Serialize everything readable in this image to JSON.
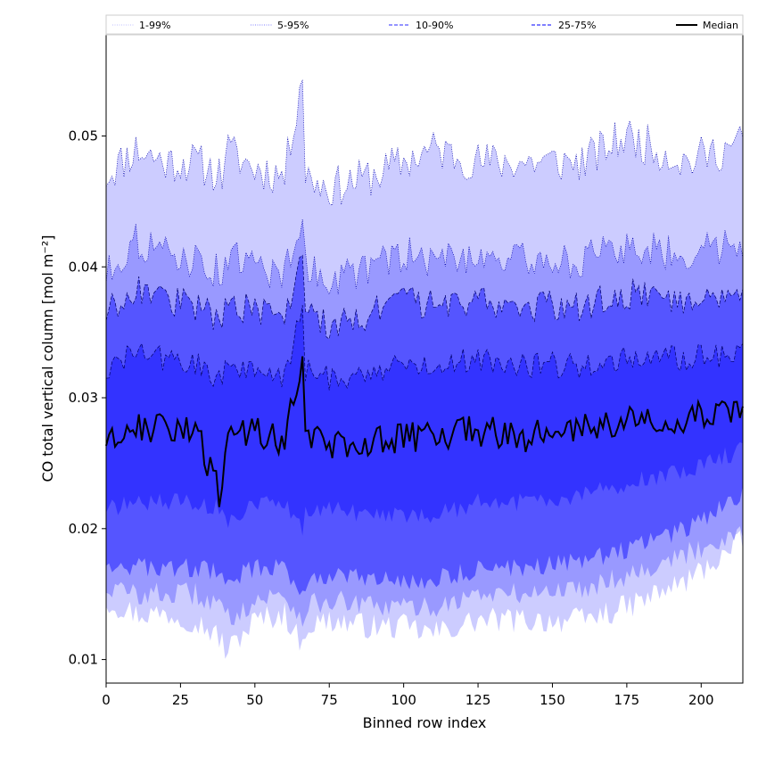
{
  "chart_data": {
    "type": "area",
    "xlabel": "Binned row index",
    "ylabel": "CO total vertical column [mol m⁻²]",
    "xlim": [
      0,
      214
    ],
    "ylim": [
      0.0082,
      0.0578
    ],
    "x_ticks": [
      "0",
      "25",
      "50",
      "75",
      "100",
      "125",
      "150",
      "175",
      "200"
    ],
    "y_ticks": [
      "0.01",
      "0.02",
      "0.03",
      "0.04",
      "0.05"
    ],
    "legend_position": "top",
    "grid": false,
    "series": [
      {
        "name": "1-99%",
        "color": "#ccccff",
        "style": "dotted",
        "knots_x": [
          0,
          10,
          20,
          30,
          39,
          40,
          50,
          60,
          66,
          67,
          75,
          90,
          100,
          110,
          125,
          140,
          160,
          175,
          195,
          214
        ],
        "lower": [
          0.0145,
          0.0135,
          0.0135,
          0.013,
          0.0115,
          0.0105,
          0.013,
          0.0135,
          0.011,
          0.0125,
          0.013,
          0.0125,
          0.0125,
          0.012,
          0.013,
          0.013,
          0.013,
          0.014,
          0.016,
          0.019
        ],
        "upper": [
          0.047,
          0.049,
          0.048,
          0.048,
          0.047,
          0.049,
          0.0475,
          0.047,
          0.055,
          0.047,
          0.046,
          0.047,
          0.048,
          0.049,
          0.048,
          0.048,
          0.048,
          0.05,
          0.048,
          0.0495
        ]
      },
      {
        "name": "5-95%",
        "color": "#9999ff",
        "style": "dotted",
        "knots_x": [
          0,
          10,
          20,
          30,
          39,
          40,
          50,
          60,
          66,
          67,
          75,
          90,
          100,
          110,
          125,
          140,
          160,
          175,
          195,
          214
        ],
        "lower": [
          0.0155,
          0.015,
          0.015,
          0.015,
          0.014,
          0.013,
          0.0145,
          0.015,
          0.013,
          0.014,
          0.0145,
          0.014,
          0.014,
          0.014,
          0.015,
          0.015,
          0.0155,
          0.0165,
          0.018,
          0.02
        ],
        "upper": [
          0.0395,
          0.042,
          0.041,
          0.0405,
          0.0395,
          0.041,
          0.04,
          0.0395,
          0.044,
          0.04,
          0.039,
          0.04,
          0.041,
          0.0405,
          0.041,
          0.0405,
          0.0405,
          0.0415,
          0.041,
          0.042
        ]
      },
      {
        "name": "10-90%",
        "color": "#5555ff",
        "style": "dashed",
        "knots_x": [
          0,
          10,
          20,
          30,
          39,
          40,
          50,
          60,
          66,
          67,
          75,
          90,
          100,
          110,
          125,
          140,
          160,
          175,
          195,
          214
        ],
        "lower": [
          0.0175,
          0.017,
          0.017,
          0.017,
          0.0165,
          0.016,
          0.017,
          0.017,
          0.015,
          0.016,
          0.0165,
          0.016,
          0.016,
          0.016,
          0.017,
          0.017,
          0.0175,
          0.0185,
          0.02,
          0.0225
        ],
        "upper": [
          0.0365,
          0.0385,
          0.0375,
          0.037,
          0.036,
          0.0375,
          0.0365,
          0.036,
          0.041,
          0.0365,
          0.0355,
          0.0365,
          0.0375,
          0.037,
          0.0375,
          0.037,
          0.037,
          0.038,
          0.0375,
          0.0385
        ]
      },
      {
        "name": "25-75%",
        "color": "#3333ff",
        "style": "dashed",
        "knots_x": [
          0,
          10,
          20,
          30,
          39,
          40,
          50,
          60,
          66,
          67,
          75,
          90,
          100,
          110,
          125,
          140,
          160,
          175,
          195,
          214
        ],
        "lower": [
          0.0215,
          0.022,
          0.022,
          0.022,
          0.0215,
          0.0205,
          0.022,
          0.022,
          0.02,
          0.021,
          0.0215,
          0.021,
          0.021,
          0.021,
          0.022,
          0.022,
          0.0225,
          0.0235,
          0.0245,
          0.026
        ],
        "upper": [
          0.032,
          0.0335,
          0.033,
          0.0325,
          0.0315,
          0.0325,
          0.032,
          0.0315,
          0.037,
          0.032,
          0.0315,
          0.032,
          0.0325,
          0.0325,
          0.033,
          0.0325,
          0.0325,
          0.033,
          0.033,
          0.0335
        ]
      },
      {
        "name": "Median",
        "color": "#000000",
        "style": "solid",
        "knots_x": [
          0,
          10,
          20,
          30,
          39,
          40,
          50,
          60,
          66,
          67,
          75,
          90,
          100,
          110,
          125,
          140,
          160,
          175,
          195,
          214
        ],
        "values": [
          0.0265,
          0.028,
          0.0275,
          0.0275,
          0.022,
          0.0265,
          0.0275,
          0.0265,
          0.0335,
          0.027,
          0.0265,
          0.0265,
          0.027,
          0.027,
          0.0275,
          0.027,
          0.0275,
          0.0285,
          0.0285,
          0.0295
        ]
      }
    ]
  }
}
